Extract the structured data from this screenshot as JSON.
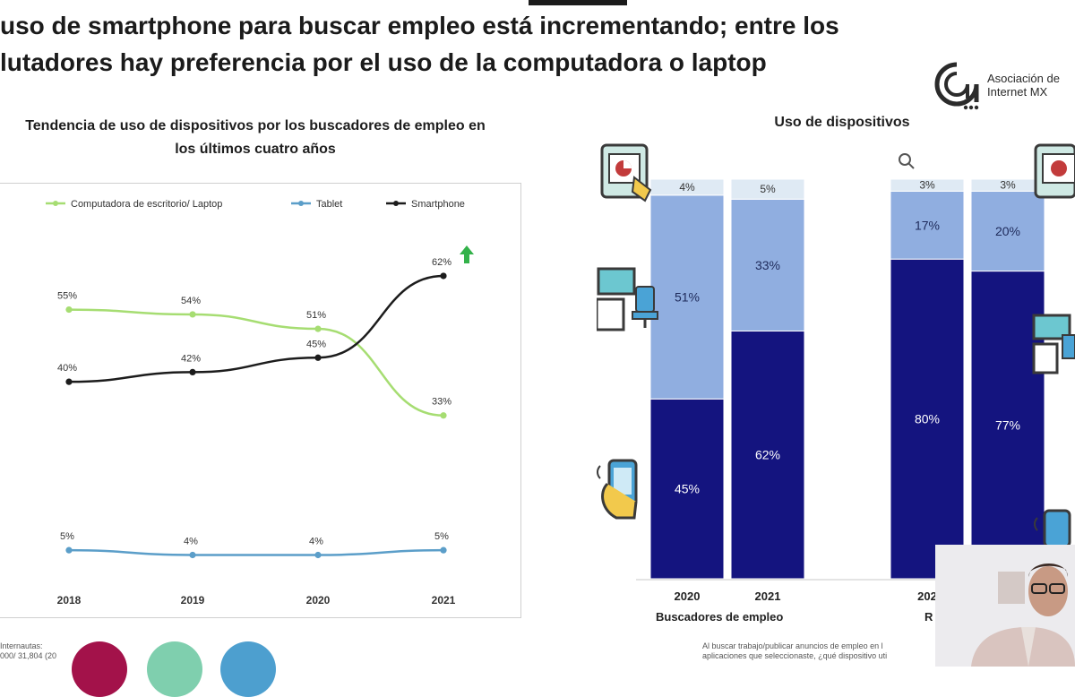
{
  "headline": {
    "line1": "uso de smartphone para buscar empleo está incrementando; entre los",
    "line2": "lutadores hay preferencia por el uso de la computadora o laptop"
  },
  "logo": {
    "line1": "Asociación de",
    "line2": "Internet MX",
    "icon": "asociacion-internet-mx-logo"
  },
  "colors": {
    "desktop": "#a6dd72",
    "tablet": "#5b9ec9",
    "smartphone": "#1c1c1c",
    "bar_dark": "#14147f",
    "bar_light": "#90aee0",
    "bar_top": "#dfeaf4",
    "up_arrow": "#33b24a"
  },
  "chart_data": [
    {
      "type": "line",
      "title": "Tendencia de uso de dispositivos por los buscadores de empleo en los últimos cuatro años",
      "x": [
        "2018",
        "2019",
        "2020",
        "2021"
      ],
      "ylim": [
        0,
        70
      ],
      "legend_position": "top",
      "series": [
        {
          "name": "Computadora de escritorio/ Laptop",
          "values": [
            55,
            54,
            51,
            33
          ],
          "labels": [
            "55%",
            "54%",
            "51%",
            "33%"
          ]
        },
        {
          "name": "Tablet",
          "values": [
            5,
            4,
            4,
            5
          ],
          "labels": [
            "5%",
            "4%",
            "4%",
            "5%"
          ]
        },
        {
          "name": "Smartphone",
          "values": [
            40,
            42,
            45,
            62
          ],
          "labels": [
            "40%",
            "42%",
            "45%",
            "62%"
          ]
        }
      ]
    },
    {
      "type": "bar",
      "stacked": true,
      "title": "Uso de dispositivos",
      "groups": [
        {
          "label": "Buscadores de empleo",
          "categories": [
            "2020",
            "2021"
          ]
        },
        {
          "label": "R",
          "categories": [
            "202",
            ""
          ]
        }
      ],
      "bars": [
        {
          "category": "2020",
          "smartphone": 45,
          "desktop": 51,
          "tablet": 4,
          "labels": [
            "45%",
            "51%",
            "4%"
          ]
        },
        {
          "category": "2021",
          "smartphone": 62,
          "desktop": 33,
          "tablet": 5,
          "labels": [
            "62%",
            "33%",
            "5%"
          ]
        },
        {
          "category": "202",
          "smartphone": 80,
          "desktop": 17,
          "tablet": 3,
          "labels": [
            "80%",
            "17%",
            "3%"
          ]
        },
        {
          "category": "",
          "smartphone": 77,
          "desktop": 20,
          "tablet": 3,
          "labels": [
            "77%",
            "20%",
            "3%"
          ]
        }
      ]
    }
  ],
  "footnotes": {
    "left_line1": "Internautas:",
    "left_line2": "000/ 31,804 (20",
    "right_line1": "Al buscar trabajo/publicar anuncios de empleo en l",
    "right_line2": "aplicaciones que seleccionaste, ¿qué dispositivo uti"
  },
  "decorations": {
    "circles": [
      "#a3124a",
      "#7fcfae",
      "#4d9fcf"
    ],
    "icons": [
      "tablet-hand-icon",
      "desktop-computer-icon",
      "smartphone-hand-icon",
      "search-cursor-icon"
    ]
  }
}
